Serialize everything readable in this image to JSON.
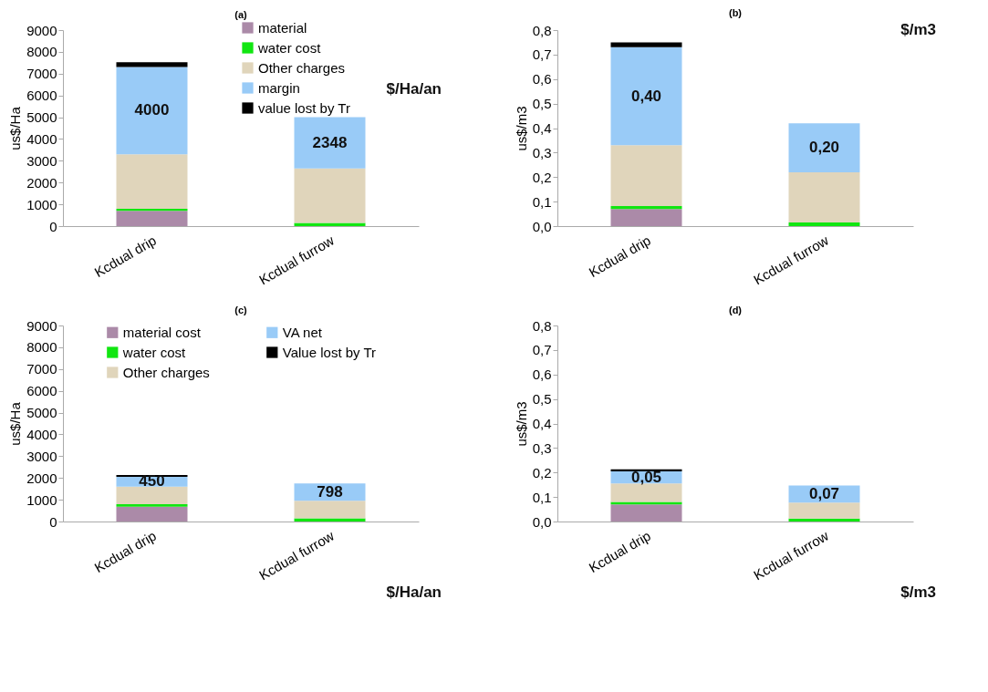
{
  "chart_data": [
    {
      "type": "bar",
      "title": "(a)",
      "ylabel": "us$/Ha",
      "categories": [
        "Kcdual drip",
        "Kcdual furrow"
      ],
      "stacked": true,
      "ylim": [
        0,
        9000
      ],
      "yticks": [
        0,
        1000,
        2000,
        3000,
        4000,
        5000,
        6000,
        7000,
        8000,
        9000
      ],
      "grid": false,
      "legend": "top right",
      "annotations": [
        "$/Ha/an"
      ],
      "series": [
        {
          "name": "material",
          "color": "#ab8aa8",
          "values": [
            700,
            0
          ]
        },
        {
          "name": "water cost",
          "color": "#11e611",
          "values": [
            100,
            150
          ]
        },
        {
          "name": "Other charges",
          "color": "#e0d5bb",
          "values": [
            2500,
            2500
          ]
        },
        {
          "name": "margin",
          "color": "#99cbf7",
          "values": [
            4000,
            2348
          ],
          "value_labels": [
            "4000",
            "2348"
          ]
        },
        {
          "name": "value lost by Tr",
          "color": "#000000",
          "values": [
            220,
            null
          ]
        }
      ]
    },
    {
      "type": "bar",
      "title": "(b)",
      "ylabel": "us$/m3",
      "categories": [
        "Kcdual drip",
        "Kcdual furrow"
      ],
      "stacked": true,
      "ylim": [
        0,
        0.8
      ],
      "yticks": [
        {
          "value": 0,
          "label": "0,0"
        },
        {
          "value": 0.1,
          "label": "0,1"
        },
        {
          "value": 0.2,
          "label": "0,2"
        },
        {
          "value": 0.3,
          "label": "0,3"
        },
        {
          "value": 0.4,
          "label": "0,4"
        },
        {
          "value": 0.5,
          "label": "0,5"
        },
        {
          "value": 0.6,
          "label": "0,6"
        },
        {
          "value": 0.7,
          "label": "0,7"
        },
        {
          "value": 0.8,
          "label": "0,8"
        }
      ],
      "grid": false,
      "annotations": [
        "$/m3"
      ],
      "series": [
        {
          "color": "#ab8aa8",
          "values": [
            0.07,
            0
          ]
        },
        {
          "color": "#11e611",
          "values": [
            0.012,
            0.015
          ]
        },
        {
          "color": "#e0d5bb",
          "values": [
            0.248,
            0.205
          ]
        },
        {
          "color": "#99cbf7",
          "values": [
            0.4,
            0.2
          ],
          "value_labels": [
            "0,40",
            "0,20"
          ]
        },
        {
          "color": "#000000",
          "values": [
            0.02,
            null
          ]
        }
      ]
    },
    {
      "type": "bar",
      "title": "(c)",
      "ylabel": "us$/Ha",
      "categories": [
        "Kcdual drip",
        "Kcdual furrow"
      ],
      "stacked": true,
      "ylim": [
        0,
        9000
      ],
      "yticks": [
        0,
        1000,
        2000,
        3000,
        4000,
        5000,
        6000,
        7000,
        8000,
        9000
      ],
      "grid": false,
      "legend": "top",
      "annotations": [
        "$/Ha/an"
      ],
      "series": [
        {
          "name": "material cost",
          "color": "#ab8aa8",
          "values": [
            680,
            0
          ]
        },
        {
          "name": "water cost",
          "color": "#11e611",
          "values": [
            120,
            150
          ]
        },
        {
          "name": "Other charges",
          "color": "#e0d5bb",
          "values": [
            800,
            800
          ]
        },
        {
          "name": "VA net",
          "color": "#99cbf7",
          "values": [
            450,
            798
          ],
          "value_labels": [
            "450",
            "798"
          ]
        },
        {
          "name": "Value lost by Tr",
          "color": "#000000",
          "values": [
            80,
            null
          ]
        }
      ]
    },
    {
      "type": "bar",
      "title": "(d)",
      "ylabel": "us$/m3",
      "categories": [
        "Kcdual drip",
        "Kcdual furrow"
      ],
      "stacked": true,
      "ylim": [
        0,
        0.8
      ],
      "yticks": [
        {
          "value": 0,
          "label": "0,0"
        },
        {
          "value": 0.1,
          "label": "0,1"
        },
        {
          "value": 0.2,
          "label": "0,2"
        },
        {
          "value": 0.3,
          "label": "0,3"
        },
        {
          "value": 0.4,
          "label": "0,4"
        },
        {
          "value": 0.5,
          "label": "0,5"
        },
        {
          "value": 0.6,
          "label": "0,6"
        },
        {
          "value": 0.7,
          "label": "0,7"
        },
        {
          "value": 0.8,
          "label": "0,8"
        }
      ],
      "grid": false,
      "annotations": [
        "$/m3"
      ],
      "series": [
        {
          "color": "#ab8aa8",
          "values": [
            0.07,
            0
          ]
        },
        {
          "color": "#11e611",
          "values": [
            0.01,
            0.012
          ]
        },
        {
          "color": "#e0d5bb",
          "values": [
            0.075,
            0.065
          ]
        },
        {
          "color": "#99cbf7",
          "values": [
            0.05,
            0.07
          ],
          "value_labels": [
            "0,05",
            "0,07"
          ]
        },
        {
          "color": "#000000",
          "values": [
            0.008,
            null
          ]
        }
      ]
    }
  ]
}
